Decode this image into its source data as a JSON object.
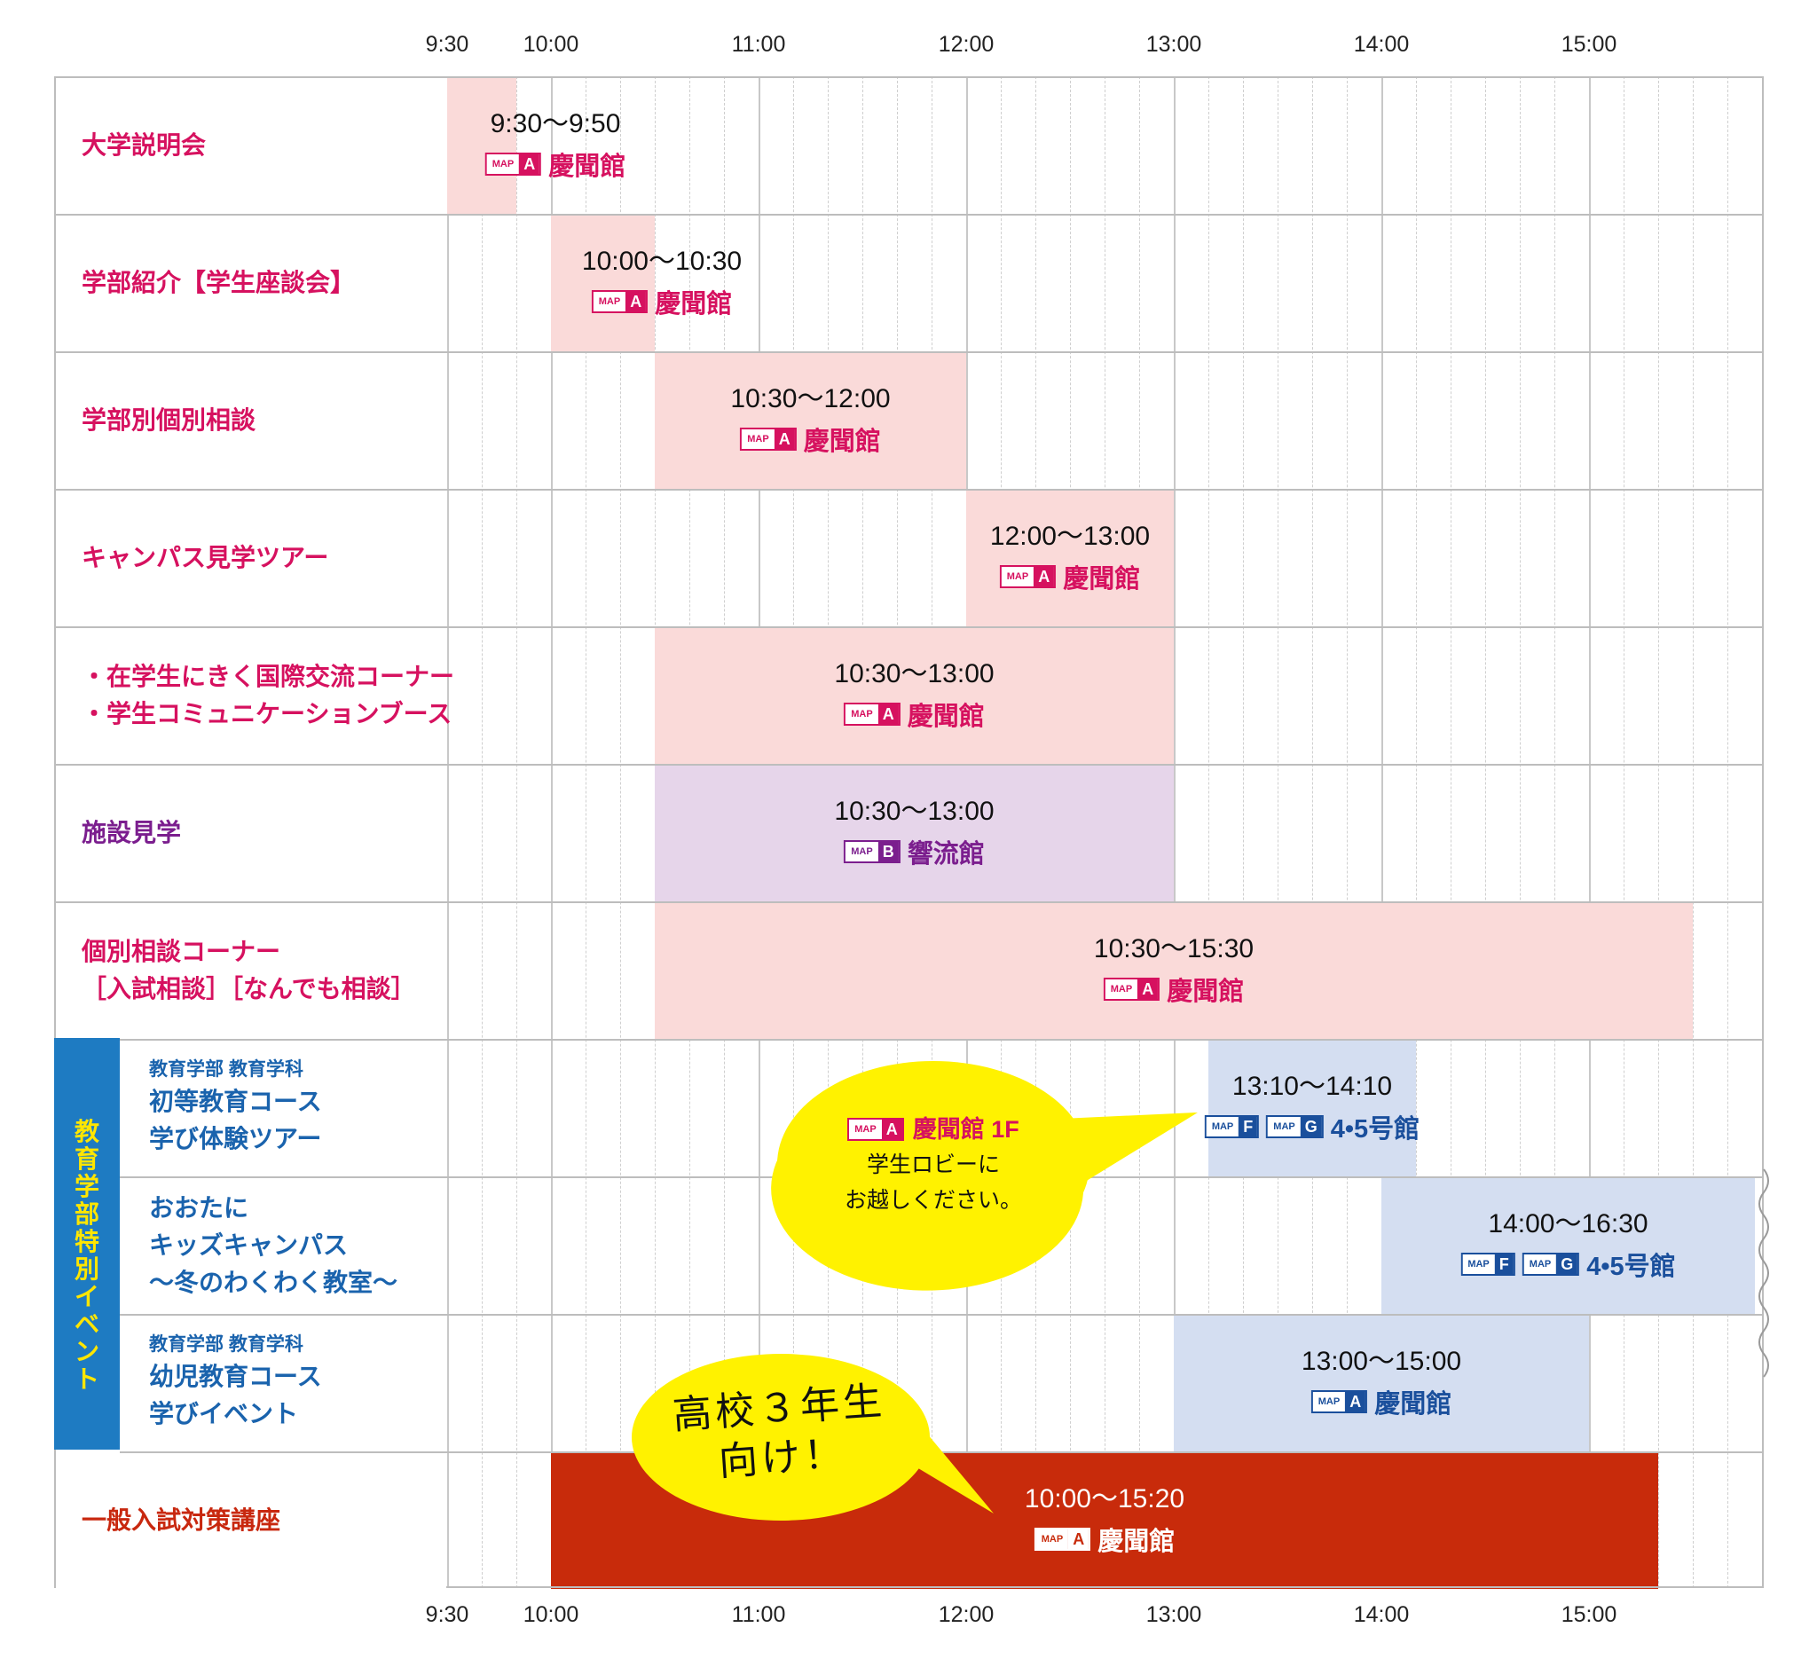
{
  "timeline": {
    "ticks": [
      "9:30",
      "10:00",
      "11:00",
      "12:00",
      "13:00",
      "14:00",
      "15:00"
    ]
  },
  "rows": [
    {
      "label": [
        "大学説明会"
      ],
      "color": "#d6115f"
    },
    {
      "label": [
        "学部紹介【学生座談会】"
      ],
      "color": "#d6115f"
    },
    {
      "label": [
        "学部別個別相談"
      ],
      "color": "#d6115f"
    },
    {
      "label": [
        "キャンパス見学ツアー"
      ],
      "color": "#d6115f"
    },
    {
      "label": [
        "・在学生にきく国際交流コーナー",
        "・学生コミュニケーションブース"
      ],
      "color": "#d6115f"
    },
    {
      "label": [
        "施設見学"
      ],
      "color": "#7b1e8e"
    },
    {
      "label": [
        "個別相談コーナー",
        "［入試相談］［なんでも相談］"
      ],
      "color": "#d6115f"
    },
    {
      "sub": "教育学部 教育学科",
      "label": [
        "初等教育コース",
        "学び体験ツアー"
      ],
      "color": "#1a63ad"
    },
    {
      "label": [
        "おおたに",
        "キッズキャンパス",
        "〜冬のわくわく教室〜"
      ],
      "color": "#1a63ad"
    },
    {
      "sub": "教育学部 教育学科",
      "label": [
        "幼児教育コース",
        "学びイベント"
      ],
      "color": "#1a63ad"
    },
    {
      "label": [
        "一般入試対策講座"
      ],
      "color": "#c8280f"
    }
  ],
  "sidebar": {
    "label": "教育学部 特別イベント"
  },
  "events": [
    {
      "start": "9:30",
      "end": "9:50",
      "time": "9:30〜9:50",
      "places": [
        {
          "map": "MAP",
          "key": "A"
        }
      ],
      "place": "慶聞館",
      "theme": "pink"
    },
    {
      "start": "10:00",
      "end": "10:30",
      "time": "10:00〜10:30",
      "places": [
        {
          "map": "MAP",
          "key": "A"
        }
      ],
      "place": "慶聞館",
      "theme": "pink"
    },
    {
      "start": "10:30",
      "end": "12:00",
      "time": "10:30〜12:00",
      "places": [
        {
          "map": "MAP",
          "key": "A"
        }
      ],
      "place": "慶聞館",
      "theme": "pink"
    },
    {
      "start": "12:00",
      "end": "13:00",
      "time": "12:00〜13:00",
      "places": [
        {
          "map": "MAP",
          "key": "A"
        }
      ],
      "place": "慶聞館",
      "theme": "pink"
    },
    {
      "start": "10:30",
      "end": "13:00",
      "time": "10:30〜13:00",
      "places": [
        {
          "map": "MAP",
          "key": "A"
        }
      ],
      "place": "慶聞館",
      "theme": "pink"
    },
    {
      "start": "10:30",
      "end": "13:00",
      "time": "10:30〜13:00",
      "places": [
        {
          "map": "MAP",
          "key": "B"
        }
      ],
      "place": "響流館",
      "theme": "purple"
    },
    {
      "start": "10:30",
      "end": "15:30",
      "time": "10:30〜15:30",
      "places": [
        {
          "map": "MAP",
          "key": "A"
        }
      ],
      "place": "慶聞館",
      "theme": "pink"
    },
    {
      "start": "13:10",
      "end": "14:10",
      "time": "13:10〜14:10",
      "places": [
        {
          "map": "MAP",
          "key": "F"
        },
        {
          "map": "MAP",
          "key": "G"
        }
      ],
      "place": "4•5号館",
      "theme": "blue"
    },
    {
      "start": "14:00",
      "end": "16:30",
      "time": "14:00〜16:30",
      "places": [
        {
          "map": "MAP",
          "key": "F"
        },
        {
          "map": "MAP",
          "key": "G"
        }
      ],
      "place": "4•5号館",
      "theme": "blue"
    },
    {
      "start": "13:00",
      "end": "15:00",
      "time": "13:00〜15:00",
      "places": [
        {
          "map": "MAP",
          "key": "A"
        }
      ],
      "place": "慶聞館",
      "theme": "blue"
    },
    {
      "start": "10:00",
      "end": "15:20",
      "time": "10:00〜15:20",
      "places": [
        {
          "map": "MAP",
          "key": "A"
        }
      ],
      "place": "慶聞館",
      "theme": "red"
    }
  ],
  "callout_yellow": {
    "map": "MAP",
    "key": "A",
    "place": "慶聞館 1F",
    "line1": "学生ロビーに",
    "line2": "お越しください。"
  },
  "callout_hand": {
    "line1": "高校３年生",
    "line2": "向け！"
  },
  "colors": {
    "pink_bg": "#fadad9",
    "purple_bg": "#e6d5ea",
    "blue_bg": "#d4def1",
    "red_bg": "#c82b0b",
    "pink_text": "#d6115f",
    "purple_text": "#7b1e8e",
    "blue_text": "#1a4f9c",
    "sidebar": "#1e7bc2",
    "sidebar_text": "#ffe600",
    "callout": "#fff200"
  }
}
